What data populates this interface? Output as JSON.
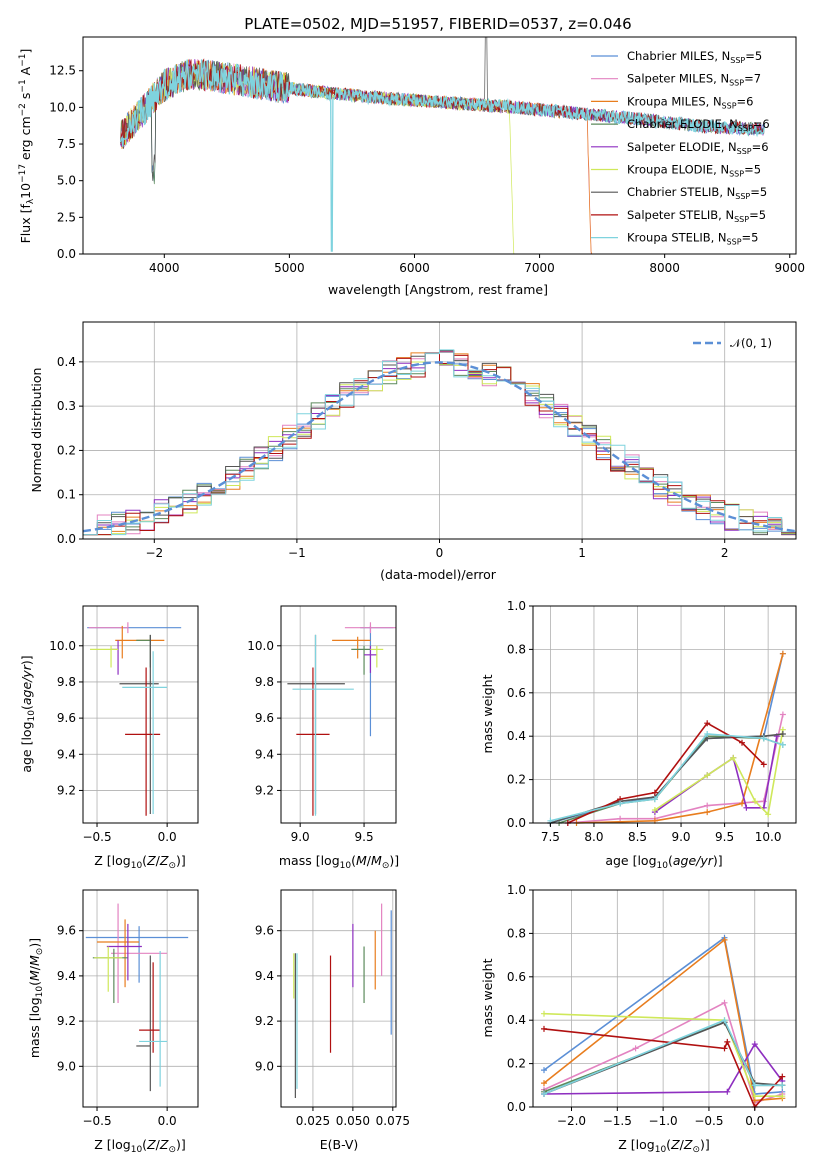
{
  "figure": {
    "title": "PLATE=0502, MJD=51957, FIBERID=0537, z=0.046"
  },
  "series": [
    {
      "name": "Chabrier MILES",
      "nssp": "5",
      "color": "#5b8fd6"
    },
    {
      "name": "Salpeter MILES",
      "nssp": "7",
      "color": "#e383c1"
    },
    {
      "name": "Kroupa MILES",
      "nssp": "6",
      "color": "#e87d1e"
    },
    {
      "name": "Chabrier ELODIE",
      "nssp": "6",
      "color": "#5c8a5c"
    },
    {
      "name": "Salpeter ELODIE",
      "nssp": "6",
      "color": "#8e2fc0"
    },
    {
      "name": "Kroupa ELODIE",
      "nssp": "5",
      "color": "#cfe85a"
    },
    {
      "name": "Chabrier STELIB",
      "nssp": "5",
      "color": "#555555"
    },
    {
      "name": "Salpeter STELIB",
      "nssp": "5",
      "color": "#b01010"
    },
    {
      "name": "Kroupa STELIB",
      "nssp": "5",
      "color": "#7fd3de"
    }
  ],
  "chart_data": [
    {
      "id": "spectrum",
      "type": "line",
      "title": "PLATE=0502, MJD=51957, FIBERID=0537, z=0.046",
      "xlabel": "wavelength [Angstrom, rest frame]",
      "ylabel": "Flux [fλ 10^-17 erg cm^-2 s^-1 A^-1]",
      "xlim": [
        3350,
        9050
      ],
      "ylim": [
        0,
        14.8
      ],
      "xticks": [
        "4000",
        "5000",
        "6000",
        "7000",
        "8000",
        "9000"
      ],
      "yticks": [
        "0.0",
        "2.5",
        "5.0",
        "7.5",
        "10.0",
        "12.5"
      ],
      "data_x": [
        3650,
        3800,
        4000,
        4200,
        4500,
        4900,
        5300,
        5800,
        6300,
        6800,
        7300,
        7800,
        8300,
        8800
      ],
      "data_y": [
        8.0,
        9.5,
        11.5,
        12.3,
        12.0,
        11.4,
        11.0,
        10.6,
        10.3,
        10.0,
        9.6,
        9.2,
        8.7,
        8.5
      ],
      "legend": "upper right",
      "grid": false
    },
    {
      "id": "residuals",
      "type": "line",
      "xlabel": "(data-model)/error",
      "ylabel": "Normed distribution",
      "xlim": [
        -2.5,
        2.5
      ],
      "ylim": [
        0,
        0.49
      ],
      "xticks": [
        "−2",
        "−1",
        "0",
        "1",
        "2"
      ],
      "yticks": [
        "0.0",
        "0.1",
        "0.2",
        "0.3",
        "0.4"
      ],
      "series": [
        {
          "name": "𝒩(0, 1)",
          "color": "#5b8fd6"
        }
      ],
      "bin_width": 0.1,
      "grid": true
    },
    {
      "id": "age_vs_Z",
      "type": "scatter",
      "xlabel": "Z [log10(Z/Z⊙)]",
      "ylabel": "age  [log10(age/yr)]",
      "xlim": [
        -0.6,
        0.22
      ],
      "ylim": [
        9.02,
        10.22
      ],
      "xticks": [
        "−0.5",
        "0.0"
      ],
      "yticks": [
        "9.2",
        "9.4",
        "9.6",
        "9.8",
        "10.0"
      ],
      "points": [
        {
          "x": -0.25,
          "xerr": [
            0.32,
            0.35
          ],
          "y": 10.1,
          "yerr": [
            0.0,
            0.0
          ]
        },
        {
          "x": -0.28,
          "xerr": [
            0.28,
            0.0
          ],
          "y": 10.1,
          "yerr": [
            0.0,
            0.0
          ]
        },
        {
          "x": -0.25,
          "xerr": [
            0.0,
            0.0
          ],
          "y": 10.03,
          "yerr": [
            0.02,
            0.0
          ]
        },
        {
          "x": -0.12,
          "xerr": [
            0.0,
            0.0
          ],
          "y": 10.03,
          "yerr": [
            0.0,
            0.0
          ]
        },
        {
          "x": -0.2,
          "xerr": [
            0.12,
            0.05
          ],
          "y": 9.98,
          "yerr": [
            0.0,
            0.0
          ]
        },
        {
          "x": -0.4,
          "xerr": [
            0.15,
            0.0
          ],
          "y": 9.98,
          "yerr": [
            0.0,
            0.0
          ]
        },
        {
          "x": -0.1,
          "xerr": [
            0.22,
            0.0
          ],
          "y": 9.79,
          "yerr": [
            0.0,
            0.0
          ]
        },
        {
          "x": -0.15,
          "xerr": [
            0.0,
            0.0
          ],
          "y": 9.51,
          "yerr": [
            0.0,
            0.0
          ]
        }
      ],
      "grid": true
    },
    {
      "id": "age_vs_mass",
      "type": "scatter",
      "xlabel": "mass [log10(M/M⊙)]",
      "xlim": [
        8.85,
        9.75
      ],
      "ylim": [
        9.02,
        10.22
      ],
      "xticks": [
        "9.0",
        "9.5"
      ],
      "yticks": [
        "9.2",
        "9.4",
        "9.6",
        "9.8",
        "10.0"
      ],
      "grid": true
    },
    {
      "id": "massweight_vs_age",
      "type": "line",
      "xlabel": "age  [log10(age/yr)]",
      "ylabel": "mass weight",
      "xlim": [
        7.3,
        10.32
      ],
      "ylim": [
        0,
        1.0
      ],
      "xticks": [
        "7.5",
        "8.0",
        "8.5",
        "9.0",
        "9.5",
        "10.0"
      ],
      "yticks": [
        "0.0",
        "0.2",
        "0.4",
        "0.6",
        "0.8",
        "1.0"
      ],
      "series_xy": [
        {
          "x": [
            7.5,
            8.3,
            8.7,
            9.3,
            9.95,
            10.17
          ],
          "y": [
            0.0,
            0.09,
            0.12,
            0.39,
            0.4,
            0.78
          ]
        },
        {
          "x": [
            7.7,
            8.3,
            8.7,
            9.3,
            9.95,
            10.17
          ],
          "y": [
            0.0,
            0.02,
            0.02,
            0.08,
            0.1,
            0.5
          ]
        },
        {
          "x": [
            7.8,
            8.7,
            9.3,
            9.7,
            10.17
          ],
          "y": [
            0.0,
            0.01,
            0.05,
            0.09,
            0.78
          ]
        },
        {
          "x": [
            7.6,
            8.3,
            8.7,
            9.3,
            9.95,
            10.17
          ],
          "y": [
            0.0,
            0.09,
            0.11,
            0.4,
            0.39,
            0.36
          ]
        },
        {
          "x": [
            8.7,
            9.3,
            9.6,
            9.75,
            9.95,
            10.1
          ],
          "y": [
            0.05,
            0.22,
            0.3,
            0.07,
            0.07,
            0.4
          ]
        },
        {
          "x": [
            8.7,
            9.3,
            9.6,
            9.85,
            10.0,
            10.17
          ],
          "y": [
            0.06,
            0.22,
            0.3,
            0.1,
            0.04,
            0.43
          ]
        },
        {
          "x": [
            7.5,
            8.3,
            8.7,
            9.3,
            9.95,
            10.17
          ],
          "y": [
            0.0,
            0.1,
            0.12,
            0.39,
            0.4,
            0.41
          ]
        },
        {
          "x": [
            7.7,
            8.3,
            8.7,
            9.3,
            9.7,
            9.95
          ],
          "y": [
            0.0,
            0.11,
            0.14,
            0.46,
            0.37,
            0.27
          ]
        },
        {
          "x": [
            7.5,
            8.3,
            8.7,
            9.3,
            9.95,
            10.17
          ],
          "y": [
            0.01,
            0.09,
            0.11,
            0.41,
            0.39,
            0.36
          ]
        }
      ],
      "grid": true
    },
    {
      "id": "mass_vs_Z",
      "type": "scatter",
      "xlabel": "Z [log10(Z/Z⊙)]",
      "ylabel": "mass [log10(M/M⊙)]",
      "xlim": [
        -0.6,
        0.22
      ],
      "ylim": [
        8.82,
        9.78
      ],
      "xticks": [
        "−0.5",
        "0.0"
      ],
      "yticks": [
        "9.0",
        "9.2",
        "9.4",
        "9.6"
      ],
      "grid": true
    },
    {
      "id": "mass_vs_ebv",
      "type": "scatter",
      "xlabel": "E(B-V)",
      "xlim": [
        0.005,
        0.077
      ],
      "ylim": [
        8.82,
        9.78
      ],
      "xticks": [
        "0.025",
        "0.050",
        "0.075"
      ],
      "yticks": [
        "9.0",
        "9.2",
        "9.4",
        "9.6"
      ],
      "grid": true
    },
    {
      "id": "massweight_vs_Z",
      "type": "line",
      "xlabel": "Z [log10(Z/Z⊙)]",
      "ylabel": "mass weight",
      "xlim": [
        -2.42,
        0.45
      ],
      "ylim": [
        0,
        1.0
      ],
      "xticks": [
        "−2.0",
        "−1.5",
        "−1.0",
        "−0.5",
        "0.0"
      ],
      "yticks": [
        "0.0",
        "0.2",
        "0.4",
        "0.6",
        "0.8",
        "1.0"
      ],
      "series_xy": [
        {
          "x": [
            -2.3,
            -0.33,
            0.0,
            0.3
          ],
          "y": [
            0.17,
            0.78,
            0.06,
            0.07
          ]
        },
        {
          "x": [
            -2.3,
            -1.3,
            -0.33,
            0.0,
            0.3
          ],
          "y": [
            0.08,
            0.27,
            0.48,
            0.02,
            0.06
          ]
        },
        {
          "x": [
            -2.3,
            -0.33,
            0.0,
            0.3
          ],
          "y": [
            0.11,
            0.77,
            0.03,
            0.04
          ]
        },
        {
          "x": [
            -2.3,
            -0.33,
            0.0,
            0.3
          ],
          "y": [
            0.07,
            0.39,
            0.1,
            0.1
          ]
        },
        {
          "x": [
            -2.3,
            -0.3,
            0.0,
            0.3
          ],
          "y": [
            0.06,
            0.07,
            0.29,
            0.12
          ]
        },
        {
          "x": [
            -2.3,
            -0.33,
            0.0,
            0.3
          ],
          "y": [
            0.43,
            0.4,
            0.05,
            0.05
          ]
        },
        {
          "x": [
            -2.3,
            -0.33,
            0.0,
            0.3
          ],
          "y": [
            0.06,
            0.39,
            0.11,
            0.1
          ]
        },
        {
          "x": [
            -2.3,
            -0.33,
            -0.3,
            0.0,
            0.3
          ],
          "y": [
            0.36,
            0.27,
            0.3,
            0.0,
            0.14
          ]
        },
        {
          "x": [
            -2.3,
            -0.33,
            0.0,
            0.3
          ],
          "y": [
            0.06,
            0.4,
            0.1,
            0.1
          ]
        }
      ],
      "grid": true
    }
  ]
}
